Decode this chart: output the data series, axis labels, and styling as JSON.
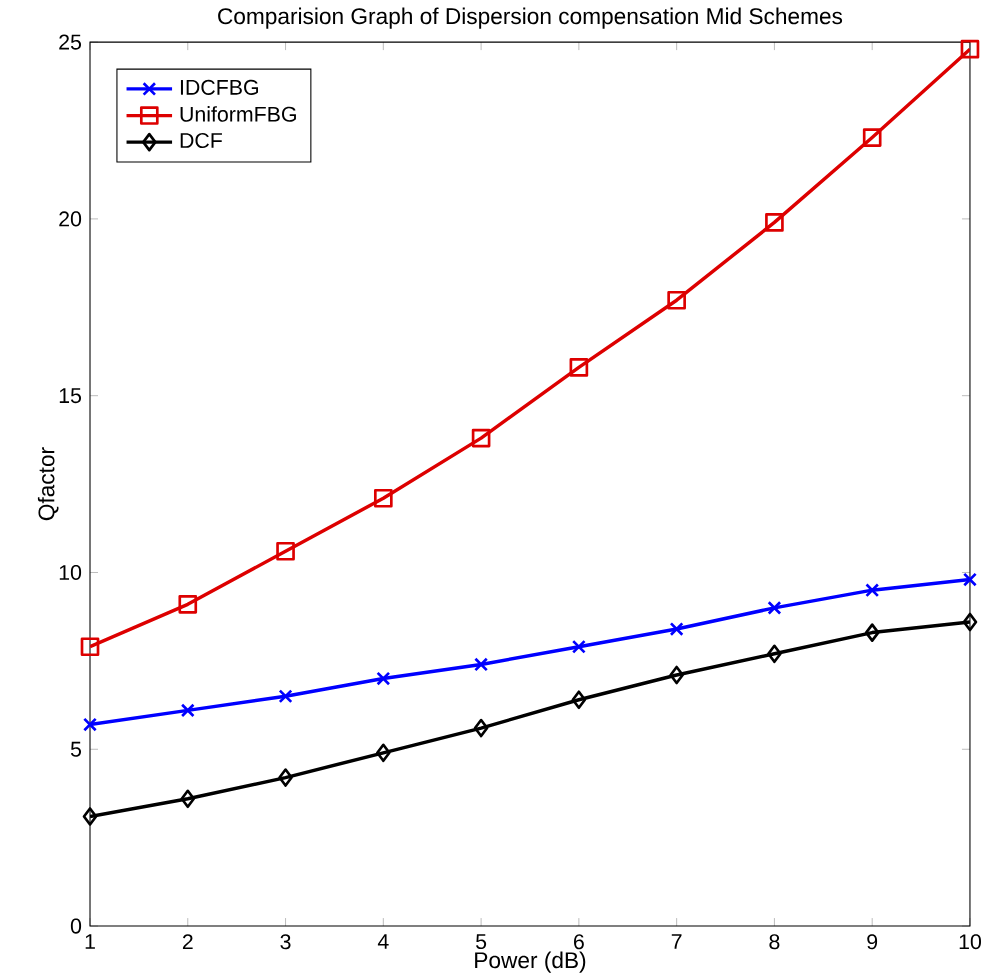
{
  "chart_data": {
    "type": "line",
    "title": "Comparision Graph of Dispersion compensation Mid Schemes",
    "xlabel": "Power (dB)",
    "ylabel": "Qfactor",
    "x": [
      1,
      2,
      3,
      4,
      5,
      6,
      7,
      8,
      9,
      10
    ],
    "series": [
      {
        "name": "IDCFBG",
        "color": "#0000ff",
        "marker": "cross",
        "values": [
          5.7,
          6.1,
          6.5,
          7.0,
          7.4,
          7.9,
          8.4,
          9.0,
          9.5,
          9.8
        ]
      },
      {
        "name": "UniformFBG",
        "color": "#dd0000",
        "marker": "square",
        "values": [
          7.9,
          9.1,
          10.6,
          12.1,
          13.8,
          15.8,
          17.7,
          19.9,
          22.3,
          24.8
        ]
      },
      {
        "name": "DCF",
        "color": "#000000",
        "marker": "diamond",
        "values": [
          3.1,
          3.6,
          4.2,
          4.9,
          5.6,
          6.4,
          7.1,
          7.7,
          8.3,
          8.6
        ]
      }
    ],
    "xlim": [
      1,
      10
    ],
    "ylim": [
      0,
      25
    ],
    "xticks": [
      1,
      2,
      3,
      4,
      5,
      6,
      7,
      8,
      9,
      10
    ],
    "yticks": [
      0,
      5,
      10,
      15,
      20,
      25
    ],
    "legend": "top left",
    "grid": false,
    "line_style": "solid"
  }
}
